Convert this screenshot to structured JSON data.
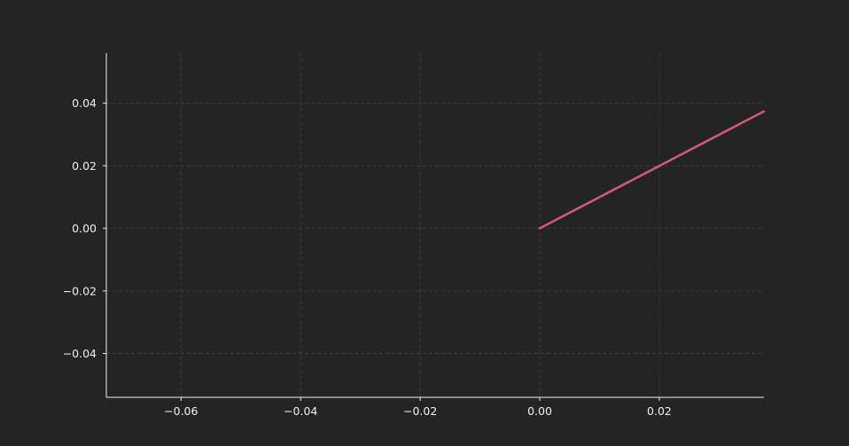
{
  "chart_data": {
    "type": "line",
    "title": "",
    "xlabel": "",
    "ylabel": "",
    "xlim": [
      -0.0725,
      0.0375
    ],
    "ylim": [
      -0.054,
      0.056
    ],
    "x_ticks": [
      -0.06,
      -0.04,
      -0.02,
      0.0,
      0.02
    ],
    "y_ticks": [
      -0.04,
      -0.02,
      0.0,
      0.02,
      0.04
    ],
    "x_tick_labels": [
      "−0.06",
      "−0.04",
      "−0.02",
      "0.00",
      "0.02"
    ],
    "y_tick_labels": [
      "−0.04",
      "−0.02",
      "0.00",
      "0.02",
      "0.04"
    ],
    "grid": true,
    "series": [
      {
        "x": [
          0.0,
          0.0375
        ],
        "y": [
          0.0,
          0.0374
        ],
        "color": "#d65a78"
      }
    ]
  },
  "colors": {
    "background": "#242424",
    "axis": "#f0f0f0",
    "grid": "#3e3e3e",
    "line": "#d65a78"
  }
}
